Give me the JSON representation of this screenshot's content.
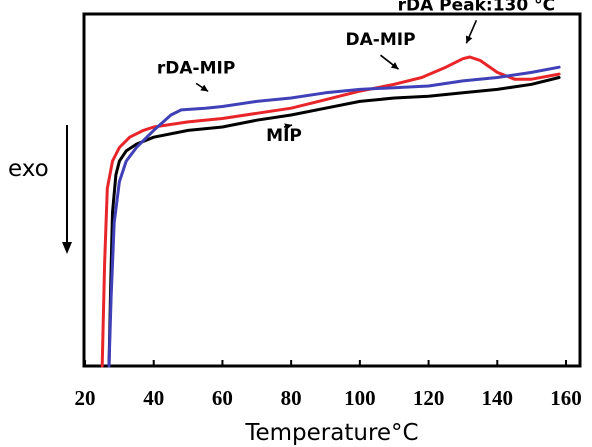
{
  "chart_data": {
    "type": "line",
    "title": "",
    "xlabel": "Temperature°C",
    "ylabel": "exo",
    "xlim": [
      20,
      160
    ],
    "x_ticks": [
      20,
      40,
      60,
      80,
      100,
      120,
      140,
      160
    ],
    "y_axis_ticks": "none",
    "grid": false,
    "legend": "none",
    "series": [
      {
        "name": "MIP",
        "color": "#000000",
        "points": [
          [
            27,
            0
          ],
          [
            27.5,
            0.25
          ],
          [
            28,
            0.45
          ],
          [
            29,
            0.56
          ],
          [
            30,
            0.6
          ],
          [
            32,
            0.63
          ],
          [
            35,
            0.65
          ],
          [
            40,
            0.67
          ],
          [
            50,
            0.69
          ],
          [
            60,
            0.7
          ],
          [
            70,
            0.72
          ],
          [
            80,
            0.735
          ],
          [
            90,
            0.755
          ],
          [
            100,
            0.775
          ],
          [
            110,
            0.785
          ],
          [
            120,
            0.79
          ],
          [
            130,
            0.8
          ],
          [
            140,
            0.81
          ],
          [
            150,
            0.825
          ],
          [
            158,
            0.845
          ]
        ]
      },
      {
        "name": "DA-MIP",
        "color": "#e8262a",
        "points": [
          [
            25,
            0
          ],
          [
            25.7,
            0.3
          ],
          [
            26.5,
            0.52
          ],
          [
            28,
            0.6
          ],
          [
            30,
            0.64
          ],
          [
            33,
            0.67
          ],
          [
            37,
            0.69
          ],
          [
            40,
            0.7
          ],
          [
            50,
            0.715
          ],
          [
            60,
            0.725
          ],
          [
            70,
            0.74
          ],
          [
            80,
            0.755
          ],
          [
            90,
            0.78
          ],
          [
            100,
            0.805
          ],
          [
            110,
            0.825
          ],
          [
            118,
            0.845
          ],
          [
            125,
            0.875
          ],
          [
            130,
            0.9
          ],
          [
            132,
            0.905
          ],
          [
            135,
            0.895
          ],
          [
            140,
            0.86
          ],
          [
            145,
            0.84
          ],
          [
            150,
            0.84
          ],
          [
            158,
            0.855
          ]
        ]
      },
      {
        "name": "rDA-MIP",
        "color": "#4040b8",
        "points": [
          [
            27,
            0
          ],
          [
            27.6,
            0.2
          ],
          [
            28.5,
            0.42
          ],
          [
            30,
            0.54
          ],
          [
            32,
            0.6
          ],
          [
            35,
            0.64
          ],
          [
            38,
            0.67
          ],
          [
            40,
            0.69
          ],
          [
            45,
            0.735
          ],
          [
            48,
            0.75
          ],
          [
            55,
            0.755
          ],
          [
            60,
            0.76
          ],
          [
            70,
            0.775
          ],
          [
            80,
            0.785
          ],
          [
            90,
            0.8
          ],
          [
            100,
            0.81
          ],
          [
            110,
            0.815
          ],
          [
            120,
            0.82
          ],
          [
            130,
            0.835
          ],
          [
            140,
            0.845
          ],
          [
            150,
            0.86
          ],
          [
            158,
            0.875
          ]
        ]
      }
    ],
    "annotations": [
      {
        "text": "rDA Peak:130 °C",
        "x": 131,
        "y": 0.91
      },
      {
        "text": "DA-MIP",
        "x": 113,
        "y": 0.84
      },
      {
        "text": "rDA-MIP",
        "x": 57,
        "y": 0.775
      },
      {
        "text": "MIP",
        "x": 82,
        "y": 0.735
      }
    ]
  }
}
